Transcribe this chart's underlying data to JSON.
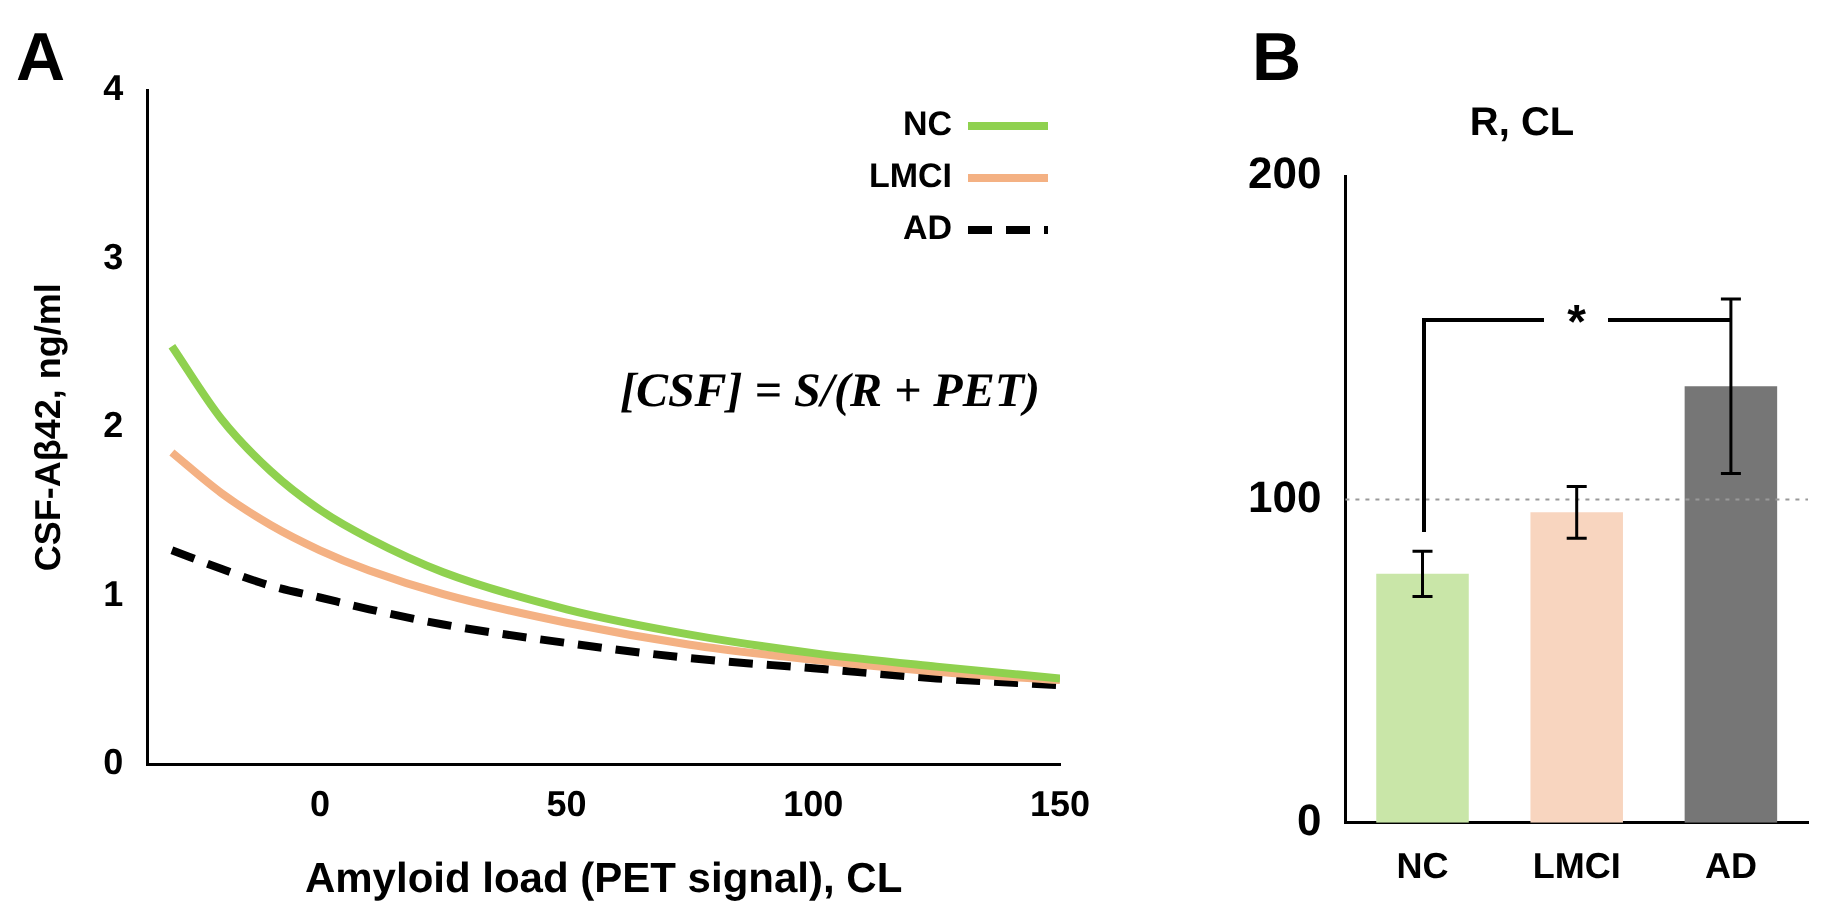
{
  "chart_data": [
    {
      "type": "line",
      "xlabel": "Amyloid load (PET signal), CL",
      "ylabel": "CSF-Aβ42, ng/ml",
      "annotations": [
        "A",
        "[CSF] = S/(R + PET)"
      ],
      "xlim": [
        -35,
        150
      ],
      "xticks": [
        0,
        50,
        100,
        150
      ],
      "ylim": [
        0,
        4
      ],
      "yticks": [
        0,
        1,
        2,
        3,
        4
      ],
      "grid": false,
      "legend": "top right",
      "marker": "none",
      "series": [
        {
          "name": "NC",
          "color": "#8fd14f",
          "x": [
            -30,
            -20,
            -10,
            0,
            10,
            25,
            50,
            75,
            100,
            125,
            150
          ],
          "values": [
            2.48,
            2.05,
            1.74,
            1.51,
            1.34,
            1.14,
            0.92,
            0.77,
            0.66,
            0.58,
            0.51
          ]
        },
        {
          "name": "LMCI",
          "color": "#f4b183",
          "x": [
            -30,
            -20,
            -10,
            0,
            10,
            25,
            50,
            75,
            100,
            125,
            150
          ],
          "values": [
            1.85,
            1.61,
            1.42,
            1.27,
            1.15,
            1.01,
            0.84,
            0.71,
            0.62,
            0.55,
            0.5
          ]
        },
        {
          "name": "AD",
          "color": "#000000",
          "line_style": "dashed",
          "x": [
            -30,
            -20,
            -10,
            0,
            10,
            25,
            50,
            75,
            100,
            125,
            150
          ],
          "values": [
            1.27,
            1.16,
            1.06,
            0.99,
            0.92,
            0.83,
            0.72,
            0.63,
            0.57,
            0.51,
            0.47
          ]
        }
      ]
    },
    {
      "type": "bar",
      "title": "R, CL",
      "annotations": [
        "B",
        "*"
      ],
      "categories": [
        "NC",
        "LMCI",
        "AD"
      ],
      "values": [
        77,
        96,
        135
      ],
      "errors": [
        7,
        8,
        27
      ],
      "colors": [
        "#c9e6a8",
        "#f8d5bf",
        "#767676"
      ],
      "ylim": [
        0,
        200
      ],
      "yticks": [
        0,
        100,
        200
      ],
      "grid": false,
      "legend": false,
      "ref_lines": [
        {
          "axis": "y",
          "value": 100,
          "color": "#999999",
          "line_style": "dotted"
        }
      ]
    }
  ]
}
